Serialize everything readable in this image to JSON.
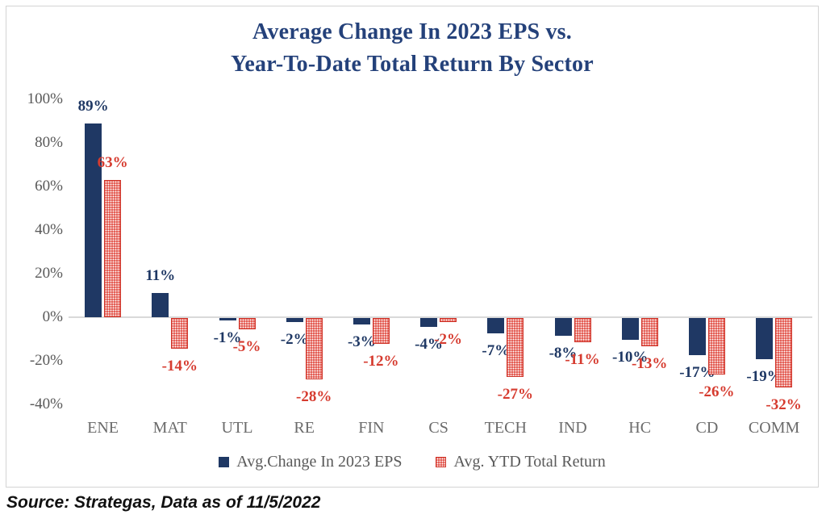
{
  "title": {
    "line1": "Average Change In 2023 EPS vs.",
    "line2": "Year-To-Date Total Return By Sector"
  },
  "source": "Source: Strategas, Data as of 11/5/2022",
  "colors": {
    "navy": "#1f3864",
    "red": "#d63b2f",
    "title_navy": "#24417a",
    "axis_gray": "#595959",
    "grid_gray": "#d9d9d9"
  },
  "chart_data": {
    "type": "bar",
    "title": "Average Change In 2023 EPS vs. Year-To-Date Total Return By Sector",
    "categories": [
      "ENE",
      "MAT",
      "UTL",
      "RE",
      "FIN",
      "CS",
      "TECH",
      "IND",
      "HC",
      "CD",
      "COMM"
    ],
    "series": [
      {
        "name": "Avg.Change In 2023 EPS",
        "color": "#1f3864",
        "pattern": "solid",
        "values": [
          89,
          11,
          -1,
          -2,
          -3,
          -4,
          -7,
          -8,
          -10,
          -17,
          -19
        ],
        "labels": [
          "89%",
          "11%",
          "-1%",
          "-2%",
          "-3%",
          "-4%",
          "-7%",
          "-8%",
          "-10%",
          "-17%",
          "-19%"
        ]
      },
      {
        "name": "Avg. YTD Total Return",
        "color": "#d63b2f",
        "pattern": "dotted",
        "values": [
          63,
          -14,
          -5,
          -28,
          -12,
          -2,
          -27,
          -11,
          -13,
          -26,
          -32
        ],
        "labels": [
          "63%",
          "-14%",
          "-5%",
          "-28%",
          "-12%",
          "-2%",
          "-27%",
          "-11%",
          "-13%",
          "-26%",
          "-32%"
        ]
      }
    ],
    "y_axis": {
      "ticks": [
        "100%",
        "80%",
        "60%",
        "40%",
        "20%",
        "0%",
        "-20%",
        "-40%"
      ],
      "tick_values": [
        100,
        80,
        60,
        40,
        20,
        0,
        -20,
        -40
      ],
      "ylim": [
        -40,
        100
      ]
    },
    "legend": {
      "position": "bottom",
      "entries": [
        "Avg.Change In 2023 EPS",
        "Avg. YTD Total Return"
      ]
    },
    "grid": "zero-line-only",
    "xlabel": "",
    "ylabel": ""
  }
}
